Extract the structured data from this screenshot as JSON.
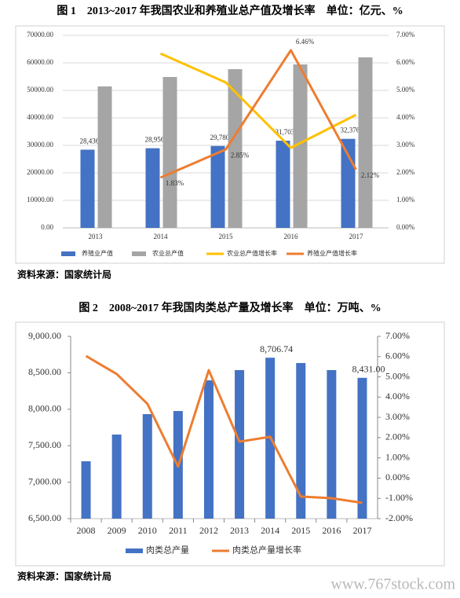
{
  "chart_data": [
    {
      "type": "bar",
      "title": "图 1　2013~2017 年我国农业和养殖业总产值及增长率　单位：亿元、%",
      "source": "资料来源：国家统计局",
      "categories": [
        "2013",
        "2014",
        "2015",
        "2016",
        "2017"
      ],
      "series": [
        {
          "name": "养殖业产值",
          "type": "bar",
          "color": "#4472c4",
          "values": [
            28436,
            28956,
            29780,
            31703,
            32376
          ],
          "value_labels": [
            "28,436.00",
            "28,956.00",
            "29,780.00",
            "31,703.00",
            "32,376.00"
          ]
        },
        {
          "name": "农业总产值",
          "type": "bar",
          "color": "#a5a5a5",
          "values": [
            51430,
            54860,
            57700,
            59430,
            62000
          ]
        },
        {
          "name": "农业总产值增长率",
          "type": "line",
          "axis": "y2",
          "color": "#ffc000",
          "values": [
            null,
            6.34,
            5.29,
            2.91,
            4.11
          ]
        },
        {
          "name": "养殖业产值增长率",
          "type": "line",
          "axis": "y2",
          "color": "#ed7d31",
          "values": [
            null,
            1.83,
            2.85,
            6.46,
            2.12
          ],
          "value_labels": [
            null,
            "1.83%",
            "2.85%",
            "6.46%",
            "2.12%"
          ]
        }
      ],
      "ylim": [
        0,
        70000
      ],
      "yticks": [
        {
          "value": 0,
          "label": "0.00"
        },
        {
          "value": 10000,
          "label": "10000.00"
        },
        {
          "value": 20000,
          "label": "20000.00"
        },
        {
          "value": 30000,
          "label": "30000.00"
        },
        {
          "value": 40000,
          "label": "40000.00"
        },
        {
          "value": 50000,
          "label": "50000.00"
        },
        {
          "value": 60000,
          "label": "60000.00"
        },
        {
          "value": 70000,
          "label": "70000.00"
        }
      ],
      "y2lim": [
        0,
        7
      ],
      "y2ticks": [
        {
          "value": 0,
          "label": "0.00%"
        },
        {
          "value": 1,
          "label": "1.00%"
        },
        {
          "value": 2,
          "label": "2.00%"
        },
        {
          "value": 3,
          "label": "3.00%"
        },
        {
          "value": 4,
          "label": "4.00%"
        },
        {
          "value": 5,
          "label": "5.00%"
        },
        {
          "value": 6,
          "label": "6.00%"
        },
        {
          "value": 7,
          "label": "7.00%"
        }
      ],
      "grid": true,
      "legend": "bottom"
    },
    {
      "type": "bar",
      "title": "图 2　2008~2017 年我国肉类总产量及增长率　单位：万吨、%",
      "source": "资料来源：国家统计局",
      "categories": [
        "2008",
        "2009",
        "2010",
        "2011",
        "2012",
        "2013",
        "2014",
        "2015",
        "2016",
        "2017"
      ],
      "series": [
        {
          "name": "肉类总产量",
          "type": "bar",
          "color": "#4472c4",
          "values": [
            7287,
            7653,
            7933,
            7976,
            8397,
            8537,
            8706.74,
            8634,
            8537,
            8431
          ],
          "value_labels": [
            null,
            null,
            null,
            null,
            null,
            null,
            "8,706.74",
            null,
            null,
            "8,431.00"
          ]
        },
        {
          "name": "肉类总产量增长率",
          "type": "line",
          "axis": "y2",
          "color": "#ed7d31",
          "values": [
            6.03,
            5.14,
            3.67,
            0.57,
            5.33,
            1.8,
            2.04,
            -0.91,
            -0.99,
            -1.22
          ]
        }
      ],
      "ylim": [
        6500,
        9000
      ],
      "yticks": [
        {
          "value": 6500,
          "label": "6,500.00"
        },
        {
          "value": 7000,
          "label": "7,000.00"
        },
        {
          "value": 7500,
          "label": "7,500.00"
        },
        {
          "value": 8000,
          "label": "8,000.00"
        },
        {
          "value": 8500,
          "label": "8,500.00"
        },
        {
          "value": 9000,
          "label": "9,000.00"
        }
      ],
      "y2lim": [
        -2,
        7
      ],
      "y2ticks": [
        {
          "value": -2,
          "label": "-2.00%"
        },
        {
          "value": -1,
          "label": "-1.00%"
        },
        {
          "value": 0,
          "label": "0.00%"
        },
        {
          "value": 1,
          "label": "1.00%"
        },
        {
          "value": 2,
          "label": "2.00%"
        },
        {
          "value": 3,
          "label": "3.00%"
        },
        {
          "value": 4,
          "label": "4.00%"
        },
        {
          "value": 5,
          "label": "5.00%"
        },
        {
          "value": 6,
          "label": "6.00%"
        },
        {
          "value": 7,
          "label": "7.00%"
        }
      ],
      "grid": false,
      "legend": "bottom"
    }
  ],
  "watermark": "www.767stock.com"
}
